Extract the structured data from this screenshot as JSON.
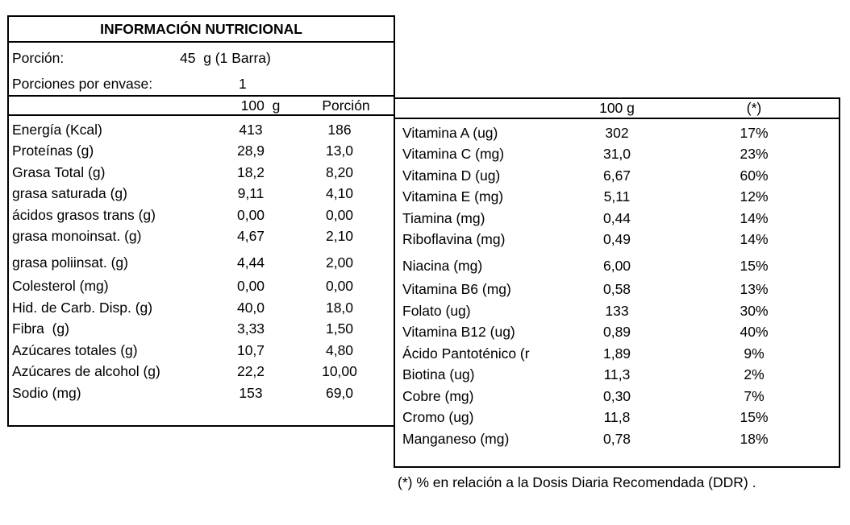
{
  "title": "INFORMACIÓN NUTRICIONAL",
  "serving": {
    "portion_label": "Porción:",
    "portion_value": "45  g (1 Barra)",
    "servings_label": "Porciones por envase:",
    "servings_value": "1"
  },
  "left_table": {
    "headers": [
      "100  g",
      "Porción"
    ],
    "rows": [
      {
        "label": "Energía (Kcal)",
        "per100": "413",
        "porcion": "186"
      },
      {
        "label": "Proteínas (g)",
        "per100": "28,9",
        "porcion": "13,0"
      },
      {
        "label": "Grasa Total (g)",
        "per100": "18,2",
        "porcion": "8,20"
      },
      {
        "label": "grasa saturada (g)",
        "per100": "9,11",
        "porcion": "4,10"
      },
      {
        "label": "ácidos grasos trans (g)",
        "per100": "0,00",
        "porcion": "0,00"
      },
      {
        "label": "grasa monoinsat. (g)",
        "per100": "4,67",
        "porcion": "2,10"
      },
      {
        "label": "grasa poliinsat. (g)",
        "per100": "4,44",
        "porcion": "2,00"
      },
      {
        "label": "Colesterol (mg)",
        "per100": "0,00",
        "porcion": "0,00"
      },
      {
        "label": "Hid. de Carb. Disp. (g)",
        "per100": "40,0",
        "porcion": "18,0"
      },
      {
        "label": "Fibra  (g)",
        "per100": "3,33",
        "porcion": "1,50"
      },
      {
        "label": "Azúcares totales (g)",
        "per100": "10,7",
        "porcion": "4,80"
      },
      {
        "label": "Azúcares de alcohol (g)",
        "per100": "22,2",
        "porcion": "10,00"
      },
      {
        "label": "Sodio (mg)",
        "per100": "153",
        "porcion": "69,0"
      }
    ]
  },
  "right_table": {
    "headers": [
      "100 g",
      "(*)"
    ],
    "rows": [
      {
        "label": "Vitamina A (ug)",
        "per100": "302",
        "ddr": "17%"
      },
      {
        "label": "Vitamina C (mg)",
        "per100": "31,0",
        "ddr": "23%"
      },
      {
        "label": "Vitamina D (ug)",
        "per100": "6,67",
        "ddr": "60%"
      },
      {
        "label": "Vitamina E (mg)",
        "per100": "5,11",
        "ddr": "12%"
      },
      {
        "label": "Tiamina (mg)",
        "per100": "0,44",
        "ddr": "14%"
      },
      {
        "label": "Riboflavina (mg)",
        "per100": "0,49",
        "ddr": "14%"
      },
      {
        "label": "Niacina (mg)",
        "per100": "6,00",
        "ddr": "15%"
      },
      {
        "label": "Vitamina B6 (mg)",
        "per100": "0,58",
        "ddr": "13%"
      },
      {
        "label": "Folato (ug)",
        "per100": "133",
        "ddr": "30%"
      },
      {
        "label": "Vitamina B12 (ug)",
        "per100": "0,89",
        "ddr": "40%"
      },
      {
        "label": "Ácido Pantoténico (r",
        "per100": "1,89",
        "ddr": "9%"
      },
      {
        "label": "Biotina (ug)",
        "per100": "11,3",
        "ddr": "2%"
      },
      {
        "label": "Cobre (mg)",
        "per100": "0,30",
        "ddr": "7%"
      },
      {
        "label": "Cromo (ug)",
        "per100": "11,8",
        "ddr": "15%"
      },
      {
        "label": "Manganeso (mg)",
        "per100": "0,78",
        "ddr": "18%"
      }
    ]
  },
  "footnote": "(*) % en relación a la Dosis Diaria Recomendada (DDR) ."
}
